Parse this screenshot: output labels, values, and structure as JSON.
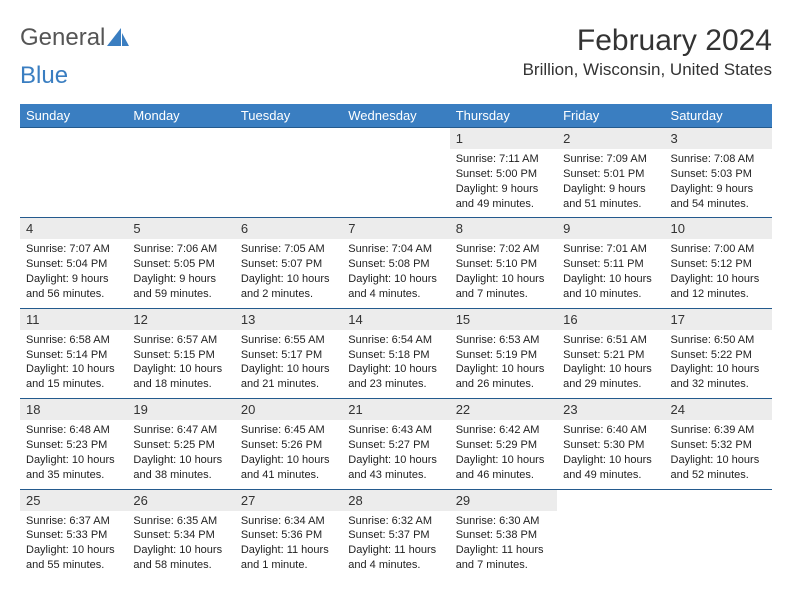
{
  "brand": {
    "word1": "General",
    "word2": "Blue"
  },
  "title": "February 2024",
  "location": "Brillion, Wisconsin, United States",
  "colors": {
    "header_bg": "#3a7ec1",
    "header_text": "#ffffff",
    "daynum_bg": "#ececec",
    "week_border": "#245a8d",
    "text": "#222222",
    "brand_gray": "#555555",
    "brand_blue": "#3a7ec1"
  },
  "day_names": [
    "Sunday",
    "Monday",
    "Tuesday",
    "Wednesday",
    "Thursday",
    "Friday",
    "Saturday"
  ],
  "weeks": [
    [
      {
        "empty": true
      },
      {
        "empty": true
      },
      {
        "empty": true
      },
      {
        "empty": true
      },
      {
        "num": "1",
        "sunrise": "7:11 AM",
        "sunset": "5:00 PM",
        "daylight": "9 hours and 49 minutes."
      },
      {
        "num": "2",
        "sunrise": "7:09 AM",
        "sunset": "5:01 PM",
        "daylight": "9 hours and 51 minutes."
      },
      {
        "num": "3",
        "sunrise": "7:08 AM",
        "sunset": "5:03 PM",
        "daylight": "9 hours and 54 minutes."
      }
    ],
    [
      {
        "num": "4",
        "sunrise": "7:07 AM",
        "sunset": "5:04 PM",
        "daylight": "9 hours and 56 minutes."
      },
      {
        "num": "5",
        "sunrise": "7:06 AM",
        "sunset": "5:05 PM",
        "daylight": "9 hours and 59 minutes."
      },
      {
        "num": "6",
        "sunrise": "7:05 AM",
        "sunset": "5:07 PM",
        "daylight": "10 hours and 2 minutes."
      },
      {
        "num": "7",
        "sunrise": "7:04 AM",
        "sunset": "5:08 PM",
        "daylight": "10 hours and 4 minutes."
      },
      {
        "num": "8",
        "sunrise": "7:02 AM",
        "sunset": "5:10 PM",
        "daylight": "10 hours and 7 minutes."
      },
      {
        "num": "9",
        "sunrise": "7:01 AM",
        "sunset": "5:11 PM",
        "daylight": "10 hours and 10 minutes."
      },
      {
        "num": "10",
        "sunrise": "7:00 AM",
        "sunset": "5:12 PM",
        "daylight": "10 hours and 12 minutes."
      }
    ],
    [
      {
        "num": "11",
        "sunrise": "6:58 AM",
        "sunset": "5:14 PM",
        "daylight": "10 hours and 15 minutes."
      },
      {
        "num": "12",
        "sunrise": "6:57 AM",
        "sunset": "5:15 PM",
        "daylight": "10 hours and 18 minutes."
      },
      {
        "num": "13",
        "sunrise": "6:55 AM",
        "sunset": "5:17 PM",
        "daylight": "10 hours and 21 minutes."
      },
      {
        "num": "14",
        "sunrise": "6:54 AM",
        "sunset": "5:18 PM",
        "daylight": "10 hours and 23 minutes."
      },
      {
        "num": "15",
        "sunrise": "6:53 AM",
        "sunset": "5:19 PM",
        "daylight": "10 hours and 26 minutes."
      },
      {
        "num": "16",
        "sunrise": "6:51 AM",
        "sunset": "5:21 PM",
        "daylight": "10 hours and 29 minutes."
      },
      {
        "num": "17",
        "sunrise": "6:50 AM",
        "sunset": "5:22 PM",
        "daylight": "10 hours and 32 minutes."
      }
    ],
    [
      {
        "num": "18",
        "sunrise": "6:48 AM",
        "sunset": "5:23 PM",
        "daylight": "10 hours and 35 minutes."
      },
      {
        "num": "19",
        "sunrise": "6:47 AM",
        "sunset": "5:25 PM",
        "daylight": "10 hours and 38 minutes."
      },
      {
        "num": "20",
        "sunrise": "6:45 AM",
        "sunset": "5:26 PM",
        "daylight": "10 hours and 41 minutes."
      },
      {
        "num": "21",
        "sunrise": "6:43 AM",
        "sunset": "5:27 PM",
        "daylight": "10 hours and 43 minutes."
      },
      {
        "num": "22",
        "sunrise": "6:42 AM",
        "sunset": "5:29 PM",
        "daylight": "10 hours and 46 minutes."
      },
      {
        "num": "23",
        "sunrise": "6:40 AM",
        "sunset": "5:30 PM",
        "daylight": "10 hours and 49 minutes."
      },
      {
        "num": "24",
        "sunrise": "6:39 AM",
        "sunset": "5:32 PM",
        "daylight": "10 hours and 52 minutes."
      }
    ],
    [
      {
        "num": "25",
        "sunrise": "6:37 AM",
        "sunset": "5:33 PM",
        "daylight": "10 hours and 55 minutes."
      },
      {
        "num": "26",
        "sunrise": "6:35 AM",
        "sunset": "5:34 PM",
        "daylight": "10 hours and 58 minutes."
      },
      {
        "num": "27",
        "sunrise": "6:34 AM",
        "sunset": "5:36 PM",
        "daylight": "11 hours and 1 minute."
      },
      {
        "num": "28",
        "sunrise": "6:32 AM",
        "sunset": "5:37 PM",
        "daylight": "11 hours and 4 minutes."
      },
      {
        "num": "29",
        "sunrise": "6:30 AM",
        "sunset": "5:38 PM",
        "daylight": "11 hours and 7 minutes."
      },
      {
        "empty": true
      },
      {
        "empty": true
      }
    ]
  ],
  "labels": {
    "sunrise": "Sunrise:",
    "sunset": "Sunset:",
    "daylight": "Daylight:"
  }
}
